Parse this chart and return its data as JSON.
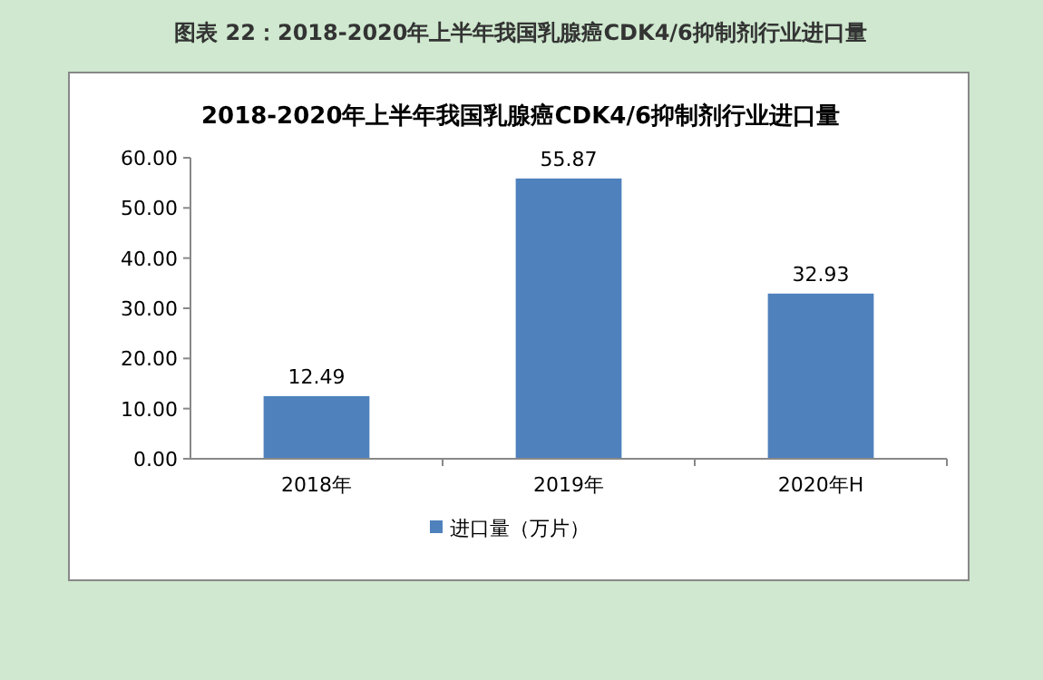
{
  "chart_data": {
    "type": "bar",
    "title": "2018-2020年上半年我国乳腺癌CDK4/6抑制剂行业进口量",
    "annotations": [
      "图表  22：2018-2020年上半年我国乳腺癌CDK4/6抑制剂行业进口量"
    ],
    "categories": [
      "2018年",
      "2019年",
      "2020年H"
    ],
    "series": [
      {
        "name": "进口量（万片）",
        "color": "#4f81bd",
        "values": [
          12.49,
          55.87,
          32.93
        ]
      }
    ],
    "ylim": [
      0,
      60
    ],
    "yticks": [
      {
        "value": 0,
        "label": "0.00"
      },
      {
        "value": 10,
        "label": "10.00"
      },
      {
        "value": 20,
        "label": "20.00"
      },
      {
        "value": 30,
        "label": "30.00"
      },
      {
        "value": 40,
        "label": "40.00"
      },
      {
        "value": 50,
        "label": "50.00"
      },
      {
        "value": 60,
        "label": "60.00"
      }
    ],
    "data_labels": true,
    "legend": "bottom",
    "grid": false
  }
}
